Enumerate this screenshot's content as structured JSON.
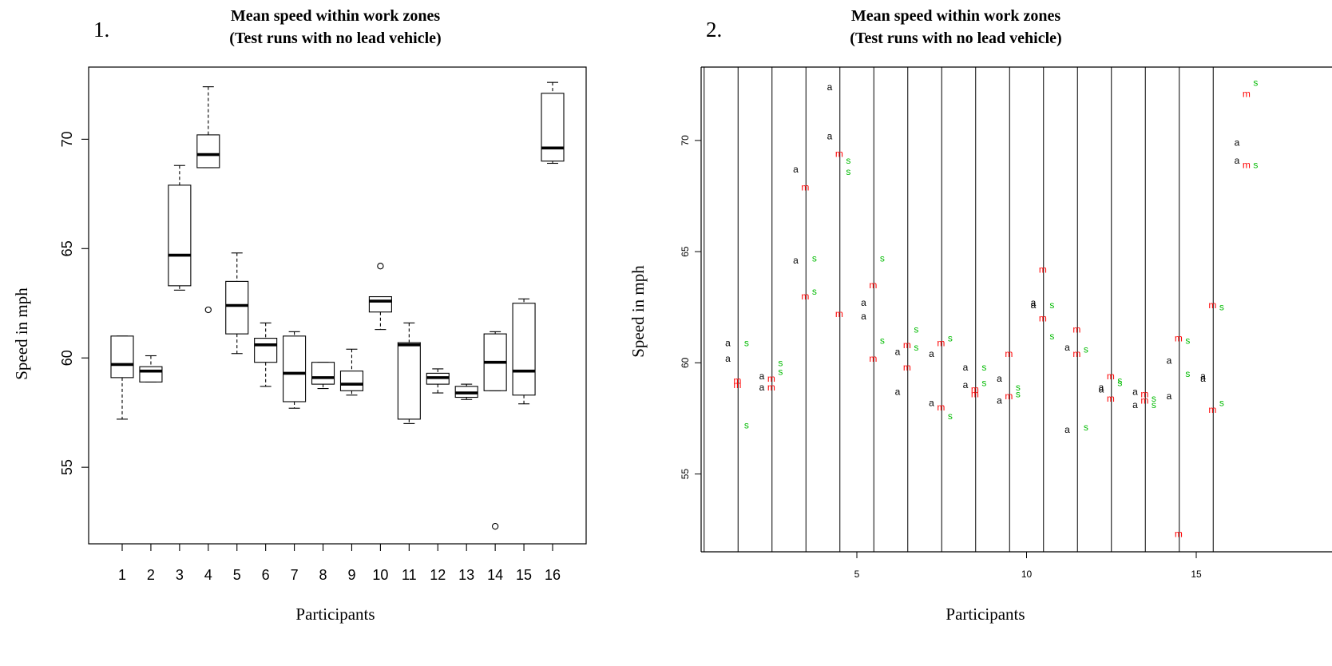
{
  "panels": [
    {
      "number": "1.",
      "title_line1": "Mean speed within work zones",
      "title_line2": "(Test runs with no lead vehicle)",
      "xlabel": "Participants",
      "ylabel": "Speed in mph",
      "x_ticks": [
        "1",
        "2",
        "3",
        "4",
        "5",
        "6",
        "7",
        "8",
        "9",
        "10",
        "11",
        "12",
        "13",
        "14",
        "15",
        "16"
      ],
      "y_ticks": [
        "55",
        "60",
        "65",
        "70"
      ]
    },
    {
      "number": "2.",
      "title_line1": "Mean speed within work zones",
      "title_line2": "(Test runs with no lead vehicle)",
      "xlabel": "Participants",
      "ylabel": "Speed in mph",
      "x_ticks": [
        "5",
        "10",
        "15"
      ],
      "y_ticks": [
        "55",
        "60",
        "65",
        "70"
      ]
    }
  ],
  "chart_data": [
    {
      "type": "boxplot",
      "title": "Mean speed within work zones (Test runs with no lead vehicle)",
      "xlabel": "Participants",
      "ylabel": "Speed in mph",
      "ylim": [
        51.5,
        73.3
      ],
      "categories": [
        "1",
        "2",
        "3",
        "4",
        "5",
        "6",
        "7",
        "8",
        "9",
        "10",
        "11",
        "12",
        "13",
        "14",
        "15",
        "16"
      ],
      "boxes": [
        {
          "min": 57.2,
          "q1": 59.1,
          "median": 59.7,
          "q3": 61.0,
          "max": 61.0,
          "outliers": []
        },
        {
          "min": 58.9,
          "q1": 58.9,
          "median": 59.4,
          "q3": 59.6,
          "max": 60.1,
          "outliers": []
        },
        {
          "min": 63.1,
          "q1": 63.3,
          "median": 64.7,
          "q3": 67.9,
          "max": 68.8,
          "outliers": []
        },
        {
          "min": 68.7,
          "q1": 68.7,
          "median": 69.3,
          "q3": 70.2,
          "max": 72.4,
          "outliers": [
            62.2
          ]
        },
        {
          "min": 60.2,
          "q1": 61.1,
          "median": 62.4,
          "q3": 63.5,
          "max": 64.8,
          "outliers": []
        },
        {
          "min": 58.7,
          "q1": 59.8,
          "median": 60.6,
          "q3": 60.9,
          "max": 61.6,
          "outliers": []
        },
        {
          "min": 57.7,
          "q1": 58.0,
          "median": 59.3,
          "q3": 61.0,
          "max": 61.2,
          "outliers": []
        },
        {
          "min": 58.6,
          "q1": 58.8,
          "median": 59.1,
          "q3": 59.8,
          "max": 59.8,
          "outliers": []
        },
        {
          "min": 58.3,
          "q1": 58.5,
          "median": 58.8,
          "q3": 59.4,
          "max": 60.4,
          "outliers": []
        },
        {
          "min": 61.3,
          "q1": 62.1,
          "median": 62.6,
          "q3": 62.8,
          "max": 62.8,
          "outliers": [
            64.2
          ]
        },
        {
          "min": 57.0,
          "q1": 57.2,
          "median": 60.6,
          "q3": 60.7,
          "max": 61.6,
          "outliers": []
        },
        {
          "min": 58.4,
          "q1": 58.8,
          "median": 59.1,
          "q3": 59.3,
          "max": 59.5,
          "outliers": []
        },
        {
          "min": 58.1,
          "q1": 58.2,
          "median": 58.4,
          "q3": 58.7,
          "max": 58.8,
          "outliers": []
        },
        {
          "min": 58.5,
          "q1": 58.5,
          "median": 59.8,
          "q3": 61.1,
          "max": 61.2,
          "outliers": [
            52.3
          ]
        },
        {
          "min": 57.9,
          "q1": 58.3,
          "median": 59.4,
          "q3": 62.5,
          "max": 62.7,
          "outliers": []
        },
        {
          "min": 68.9,
          "q1": 69.0,
          "median": 69.6,
          "q3": 72.1,
          "max": 72.6,
          "outliers": []
        }
      ]
    },
    {
      "type": "scatter",
      "title": "Mean speed within work zones (Test runs with no lead vehicle)",
      "xlabel": "Participants",
      "ylabel": "Speed in mph",
      "ylim": [
        51.5,
        73.3
      ],
      "xlim": [
        0.6,
        16.8
      ],
      "series": [
        {
          "marker": "a",
          "color": "#000000",
          "points": [
            [
              1.2,
              60.9
            ],
            [
              1.2,
              60.2
            ],
            [
              2.2,
              59.4
            ],
            [
              2.2,
              58.9
            ],
            [
              3.2,
              68.7
            ],
            [
              3.2,
              64.6
            ],
            [
              4.2,
              72.4
            ],
            [
              4.2,
              70.2
            ],
            [
              5.2,
              62.7
            ],
            [
              5.2,
              62.1
            ],
            [
              6.2,
              60.5
            ],
            [
              6.2,
              58.7
            ],
            [
              7.2,
              60.4
            ],
            [
              7.2,
              58.2
            ],
            [
              8.2,
              59.8
            ],
            [
              8.2,
              59.0
            ],
            [
              9.2,
              59.3
            ],
            [
              9.2,
              58.3
            ],
            [
              10.2,
              62.7
            ],
            [
              10.2,
              62.6
            ],
            [
              11.2,
              60.7
            ],
            [
              11.2,
              57.0
            ],
            [
              12.2,
              58.9
            ],
            [
              12.2,
              58.8
            ],
            [
              13.2,
              58.7
            ],
            [
              13.2,
              58.1
            ],
            [
              14.2,
              60.1
            ],
            [
              14.2,
              58.5
            ],
            [
              15.2,
              59.4
            ],
            [
              15.2,
              59.3
            ],
            [
              16.2,
              69.9
            ],
            [
              16.2,
              69.1
            ]
          ]
        },
        {
          "marker": "m",
          "color": "#ff0000",
          "points": [
            [
              1.48,
              59.2
            ],
            [
              1.48,
              59.0
            ],
            [
              2.48,
              59.3
            ],
            [
              2.48,
              58.9
            ],
            [
              3.48,
              67.9
            ],
            [
              3.48,
              63.0
            ],
            [
              4.48,
              69.4
            ],
            [
              4.48,
              62.2
            ],
            [
              5.48,
              63.5
            ],
            [
              5.48,
              60.2
            ],
            [
              6.48,
              60.8
            ],
            [
              6.48,
              59.8
            ],
            [
              7.48,
              60.9
            ],
            [
              7.48,
              58.0
            ],
            [
              8.48,
              58.8
            ],
            [
              8.48,
              58.6
            ],
            [
              9.48,
              60.4
            ],
            [
              9.48,
              58.5
            ],
            [
              10.48,
              64.2
            ],
            [
              10.48,
              62.0
            ],
            [
              11.48,
              61.5
            ],
            [
              11.48,
              60.4
            ],
            [
              12.48,
              59.4
            ],
            [
              12.48,
              58.4
            ],
            [
              13.48,
              58.6
            ],
            [
              13.48,
              58.3
            ],
            [
              14.48,
              61.1
            ],
            [
              14.48,
              52.3
            ],
            [
              15.48,
              62.6
            ],
            [
              15.48,
              57.9
            ],
            [
              16.48,
              72.1
            ],
            [
              16.48,
              68.9
            ]
          ]
        },
        {
          "marker": "s",
          "color": "#00bb00",
          "points": [
            [
              1.75,
              60.9
            ],
            [
              1.75,
              57.2
            ],
            [
              2.75,
              60.0
            ],
            [
              2.75,
              59.6
            ],
            [
              3.75,
              64.7
            ],
            [
              3.75,
              63.2
            ],
            [
              4.75,
              69.1
            ],
            [
              4.75,
              68.6
            ],
            [
              5.75,
              64.7
            ],
            [
              5.75,
              61.0
            ],
            [
              6.75,
              61.5
            ],
            [
              6.75,
              60.7
            ],
            [
              7.75,
              61.1
            ],
            [
              7.75,
              57.6
            ],
            [
              8.75,
              59.8
            ],
            [
              8.75,
              59.1
            ],
            [
              9.75,
              58.9
            ],
            [
              9.75,
              58.6
            ],
            [
              10.75,
              62.6
            ],
            [
              10.75,
              61.2
            ],
            [
              11.75,
              60.6
            ],
            [
              11.75,
              57.1
            ],
            [
              12.75,
              59.2
            ],
            [
              12.75,
              59.1
            ],
            [
              13.75,
              58.4
            ],
            [
              13.75,
              58.1
            ],
            [
              14.75,
              61.0
            ],
            [
              14.75,
              59.5
            ],
            [
              15.75,
              62.5
            ],
            [
              15.75,
              58.2
            ],
            [
              16.75,
              72.6
            ],
            [
              16.75,
              68.9
            ]
          ]
        }
      ]
    }
  ]
}
